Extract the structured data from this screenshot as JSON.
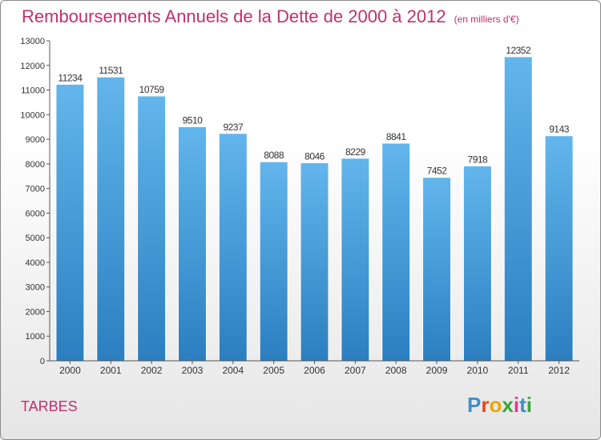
{
  "header": {
    "title": "Remboursements Annuels de la Dette de 2000 à 2012",
    "subtitle": "(en milliers d'€)"
  },
  "footer": {
    "city": "TARBES",
    "logo_letters": [
      "P",
      "r",
      "o",
      "x",
      "i",
      "t",
      "i"
    ],
    "logo_colors": [
      "#3a8fd0",
      "#e8451e",
      "#f2a200",
      "#3aa53a",
      "#e03a8c",
      "#3a8fd0",
      "#3aa53a"
    ]
  },
  "colors": {
    "bar_light": "#62b6ec",
    "bar_dark": "#2b7fc0",
    "text": "#333333",
    "accent": "#c0306e"
  },
  "chart_data": {
    "type": "bar",
    "categories": [
      "2000",
      "2001",
      "2002",
      "2003",
      "2004",
      "2005",
      "2006",
      "2007",
      "2008",
      "2009",
      "2010",
      "2011",
      "2012"
    ],
    "values": [
      11234,
      11531,
      10759,
      9510,
      9237,
      8088,
      8046,
      8229,
      8841,
      7452,
      7918,
      12352,
      9143
    ],
    "value_labels": [
      "11234",
      "11531",
      "10759",
      "9510",
      "9237",
      "8088",
      "8046",
      "8229",
      "8841",
      "7452",
      "7918",
      "12352",
      "9143"
    ],
    "y_ticks": [
      0,
      1000,
      2000,
      3000,
      4000,
      5000,
      6000,
      7000,
      8000,
      9000,
      10000,
      11000,
      12000,
      13000
    ],
    "y_tick_labels": [
      "0",
      "1000",
      "2000",
      "3000",
      "4000",
      "5000",
      "6000",
      "7000",
      "8000",
      "9000",
      "10000",
      "11000",
      "12000",
      "13000"
    ],
    "ylim": [
      0,
      13000
    ],
    "grid": false,
    "legend": "none"
  }
}
